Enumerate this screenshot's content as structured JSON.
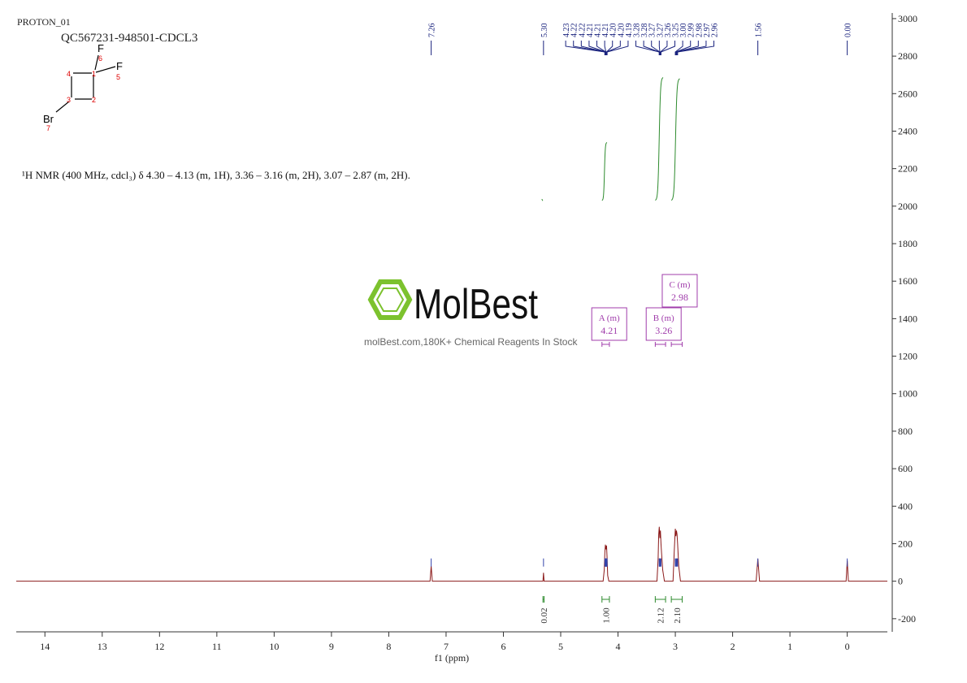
{
  "header": {
    "title": "PROTON_01",
    "sample": "QC567231-948501-CDCL3"
  },
  "description": "¹H NMR (400 MHz, cdcl₃) δ 4.30 – 4.13 (m, 1H), 3.36 – 3.16 (m, 2H), 3.07 – 2.87 (m, 2H).",
  "structure": {
    "atoms": [
      "F",
      "F",
      "Br"
    ],
    "numbers": [
      "1",
      "2",
      "3",
      "4",
      "5",
      "6",
      "7"
    ]
  },
  "watermark": {
    "brand": "MolBest",
    "tagline": "molBest.com,180K+ Chemical Reagents In Stock"
  },
  "chart_data": {
    "type": "line",
    "x_label": "f1 (ppm)",
    "color": "#8b1a1a",
    "xlim": [
      14.5,
      -0.7
    ],
    "ylim": [
      -270,
      3030
    ],
    "xticks": [
      14,
      13,
      12,
      11,
      10,
      9,
      8,
      7,
      6,
      5,
      4,
      3,
      2,
      1,
      0
    ],
    "yticks": [
      -200,
      0,
      200,
      400,
      600,
      800,
      1000,
      1200,
      1400,
      1600,
      1800,
      2000,
      2200,
      2400,
      2600,
      2800,
      3000
    ],
    "x": [
      14.5,
      7.28,
      7.26,
      7.24,
      5.31,
      5.3,
      5.29,
      4.26,
      4.24,
      4.23,
      4.22,
      4.21,
      4.2,
      4.19,
      4.18,
      4.16,
      3.32,
      3.3,
      3.29,
      3.28,
      3.27,
      3.26,
      3.25,
      3.24,
      3.22,
      3.19,
      3.04,
      3.02,
      3.0,
      2.99,
      2.98,
      2.97,
      2.96,
      2.94,
      2.91,
      1.59,
      1.56,
      1.53,
      0.02,
      0.0,
      -0.02,
      -0.7
    ],
    "values": [
      0,
      0,
      80,
      0,
      0,
      45,
      0,
      0,
      60,
      150,
      195,
      170,
      190,
      120,
      30,
      0,
      0,
      120,
      250,
      290,
      230,
      270,
      200,
      150,
      60,
      0,
      0,
      150,
      280,
      240,
      270,
      250,
      200,
      80,
      0,
      0,
      120,
      0,
      0,
      110,
      0,
      0
    ],
    "peaks": [
      {
        "value": 7.26,
        "label": "7.26"
      },
      {
        "value": 5.3,
        "label": "5.30"
      },
      {
        "value": 4.23,
        "label": "4.23"
      },
      {
        "value": 4.22,
        "label": "4.22"
      },
      {
        "value": 4.22,
        "label": "4.22"
      },
      {
        "value": 4.21,
        "label": "4.21"
      },
      {
        "value": 4.21,
        "label": "4.21"
      },
      {
        "value": 4.21,
        "label": "4.21"
      },
      {
        "value": 4.2,
        "label": "4.20"
      },
      {
        "value": 4.2,
        "label": "4.20"
      },
      {
        "value": 4.19,
        "label": "4.19"
      },
      {
        "value": 3.28,
        "label": "3.28"
      },
      {
        "value": 3.28,
        "label": "3.28"
      },
      {
        "value": 3.27,
        "label": "3.27"
      },
      {
        "value": 3.27,
        "label": "3.27"
      },
      {
        "value": 3.26,
        "label": "3.26"
      },
      {
        "value": 3.25,
        "label": "3.25"
      },
      {
        "value": 3.0,
        "label": "3.00"
      },
      {
        "value": 2.99,
        "label": "2.99"
      },
      {
        "value": 2.98,
        "label": "2.98"
      },
      {
        "value": 2.97,
        "label": "2.97"
      },
      {
        "value": 2.96,
        "label": "2.96"
      },
      {
        "value": 1.56,
        "label": "1.56"
      },
      {
        "value": 0,
        "label": "0.00"
      }
    ],
    "integrals": [
      {
        "value": 0.02,
        "label": "0.02",
        "from": 5.31,
        "to": 5.29
      },
      {
        "value": 1.0,
        "label": "1.00",
        "from": 4.28,
        "to": 4.15
      },
      {
        "value": 2.12,
        "label": "2.12",
        "from": 3.35,
        "to": 3.17
      },
      {
        "value": 2.1,
        "label": "2.10",
        "from": 3.07,
        "to": 2.88
      }
    ],
    "multiplets": [
      {
        "label": "A (m)",
        "shift": 4.21,
        "range": [
          4.28,
          4.15
        ]
      },
      {
        "label": "B (m)",
        "shift": 3.26,
        "range": [
          3.35,
          3.17
        ]
      },
      {
        "label": "C (m)",
        "shift": 2.98,
        "range": [
          3.07,
          2.88
        ]
      }
    ]
  }
}
